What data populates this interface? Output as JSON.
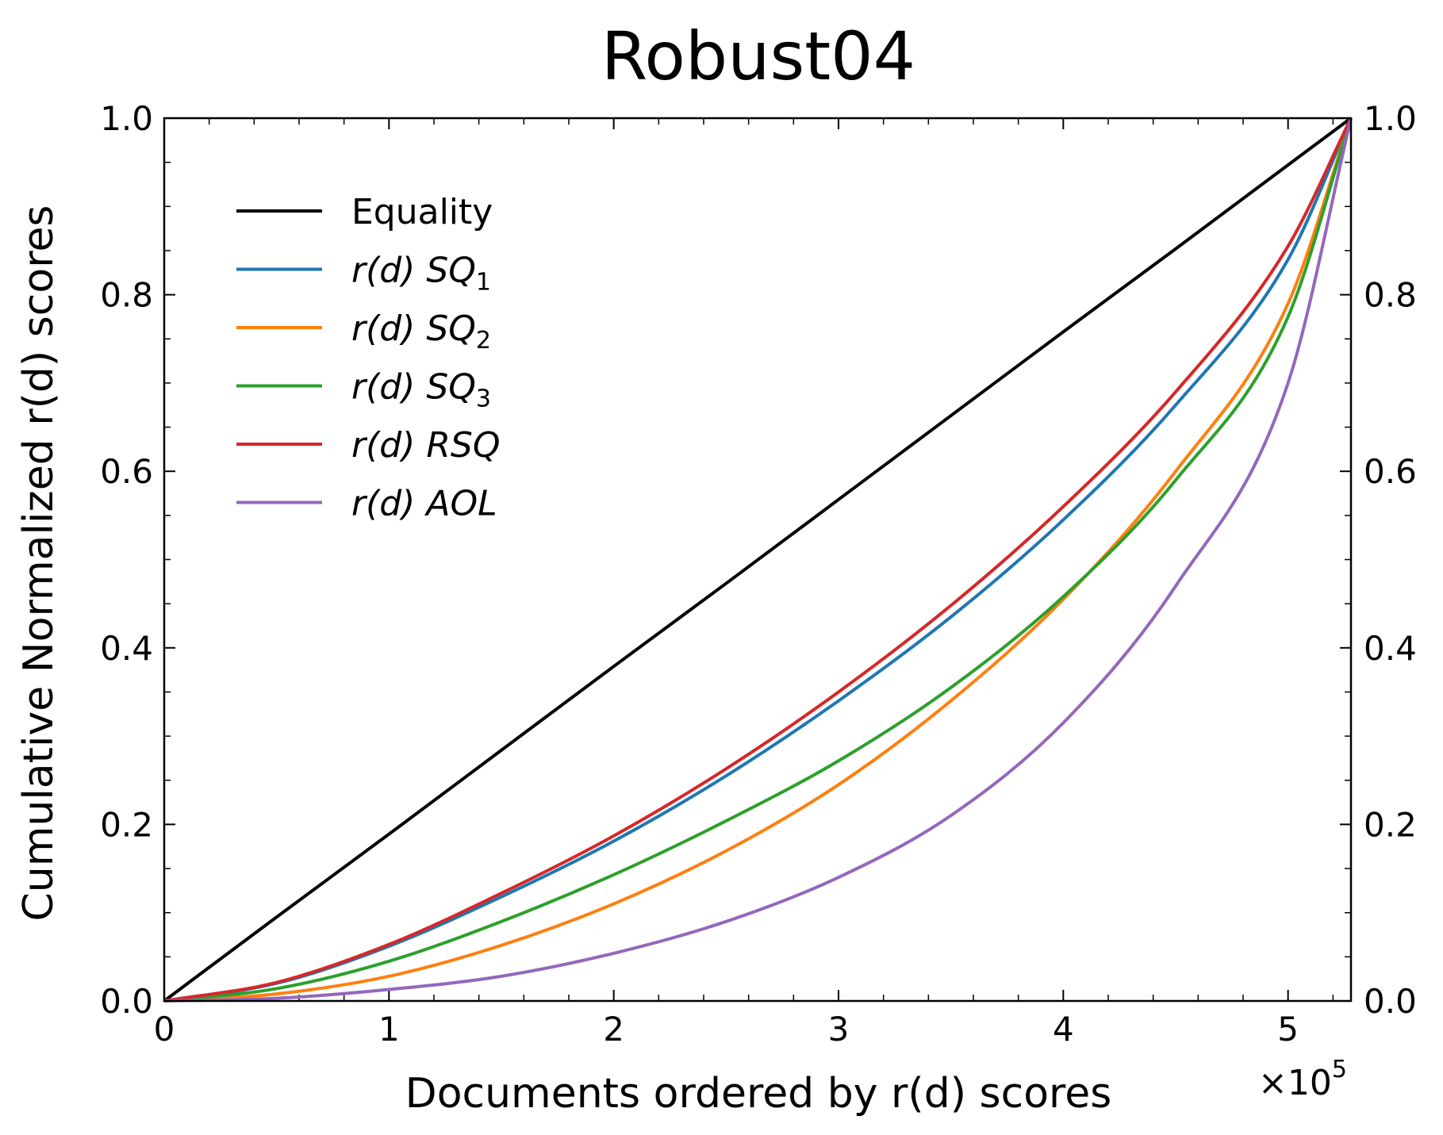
{
  "chart_data": {
    "type": "line",
    "title": "Robust04",
    "xlabel": "Documents ordered by r(d) scores",
    "ylabel": "Cumulative Normalized r(d) scores",
    "x_offset_label": "×10",
    "x_offset_exponent": "5",
    "xlim": [
      0,
      5.28
    ],
    "ylim": [
      0,
      1.0
    ],
    "x_ticks": [
      "0",
      "1",
      "2",
      "3",
      "4",
      "5"
    ],
    "x_tick_values": [
      0,
      1,
      2,
      3,
      4,
      5
    ],
    "y_ticks": [
      "0.0",
      "0.2",
      "0.4",
      "0.6",
      "0.8",
      "1.0"
    ],
    "y_tick_values": [
      0,
      0.2,
      0.4,
      0.6,
      0.8,
      1.0
    ],
    "right_axis_ticks": true,
    "grid": false,
    "legend_position": "upper-left",
    "x": [
      0,
      0.5,
      1.0,
      1.5,
      2.0,
      2.5,
      3.0,
      3.5,
      4.0,
      4.5,
      5.0,
      5.28
    ],
    "series": [
      {
        "legend_prefix": "r(d) ",
        "legend_main": "",
        "legend_upright": "Equality",
        "legend_sub": "",
        "color": "#000000",
        "values": [
          0,
          0.095,
          0.189,
          0.284,
          0.379,
          0.473,
          0.568,
          0.663,
          0.758,
          0.852,
          0.947,
          1.0
        ]
      },
      {
        "legend_prefix": "r(d) ",
        "legend_main": "SQ",
        "legend_upright": "",
        "legend_sub": "1",
        "color": "#1f77b4",
        "values": [
          0,
          0.02,
          0.062,
          0.118,
          0.181,
          0.255,
          0.34,
          0.435,
          0.545,
          0.675,
          0.84,
          1.0
        ]
      },
      {
        "legend_prefix": "r(d) ",
        "legend_main": "SQ",
        "legend_upright": "",
        "legend_sub": "2",
        "color": "#ff7f0e",
        "values": [
          0,
          0.008,
          0.028,
          0.063,
          0.11,
          0.17,
          0.245,
          0.34,
          0.455,
          0.6,
          0.79,
          1.0
        ]
      },
      {
        "legend_prefix": "r(d) ",
        "legend_main": "SQ",
        "legend_upright": "",
        "legend_sub": "3",
        "color": "#2ca02c",
        "values": [
          0,
          0.014,
          0.045,
          0.09,
          0.143,
          0.204,
          0.272,
          0.355,
          0.458,
          0.59,
          0.775,
          1.0
        ]
      },
      {
        "legend_prefix": "r(d) ",
        "legend_main": "RSQ",
        "legend_upright": "",
        "legend_sub": "",
        "color": "#d62728",
        "values": [
          0,
          0.021,
          0.064,
          0.122,
          0.187,
          0.263,
          0.35,
          0.448,
          0.56,
          0.69,
          0.855,
          1.0
        ]
      },
      {
        "legend_prefix": "r(d) ",
        "legend_main": "AOL",
        "legend_upright": "",
        "legend_sub": "",
        "color": "#9467bd",
        "values": [
          0,
          0.003,
          0.013,
          0.028,
          0.054,
          0.09,
          0.14,
          0.21,
          0.315,
          0.47,
          0.7,
          1.0
        ]
      }
    ]
  }
}
